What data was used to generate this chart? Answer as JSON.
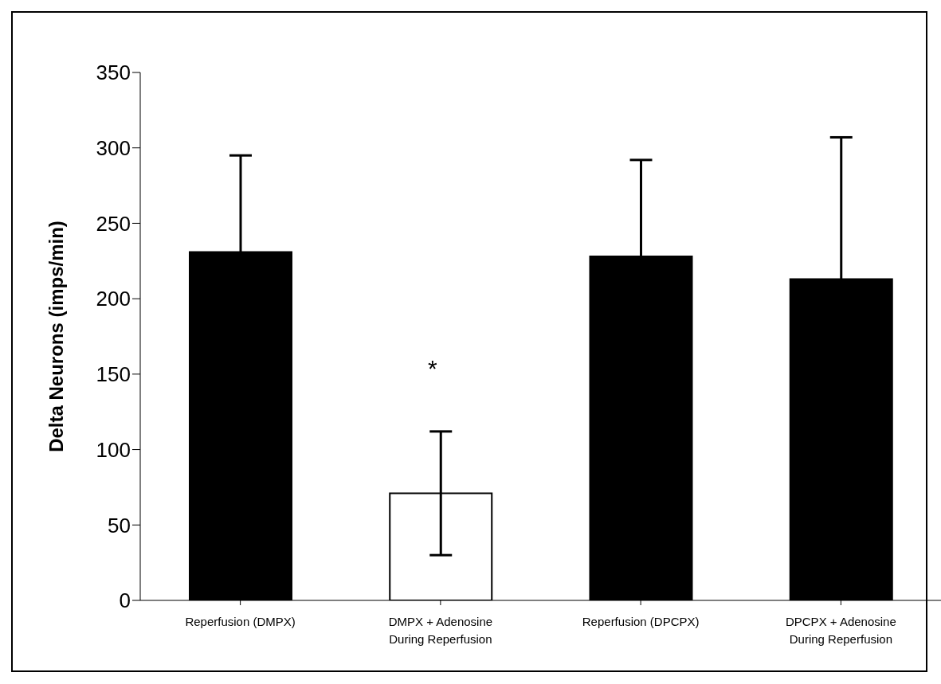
{
  "chart_data": {
    "type": "bar",
    "ylabel": "Delta Neurons (imps/min)",
    "categories": [
      "Reperfusion (DMPX)",
      "DMPX + Adenosine During Reperfusion",
      "Reperfusion (DPCPX)",
      "DPCPX + Adenosine During Reperfusion"
    ],
    "values": [
      231,
      71,
      228,
      213
    ],
    "errors": [
      64,
      41,
      64,
      94
    ],
    "colors": [
      "#000000",
      "#ffffff",
      "#000000",
      "#000000"
    ],
    "ylim": [
      0,
      350
    ],
    "yticks": [
      0,
      50,
      100,
      150,
      200,
      250,
      300,
      350
    ],
    "annotations": [
      "*"
    ]
  }
}
